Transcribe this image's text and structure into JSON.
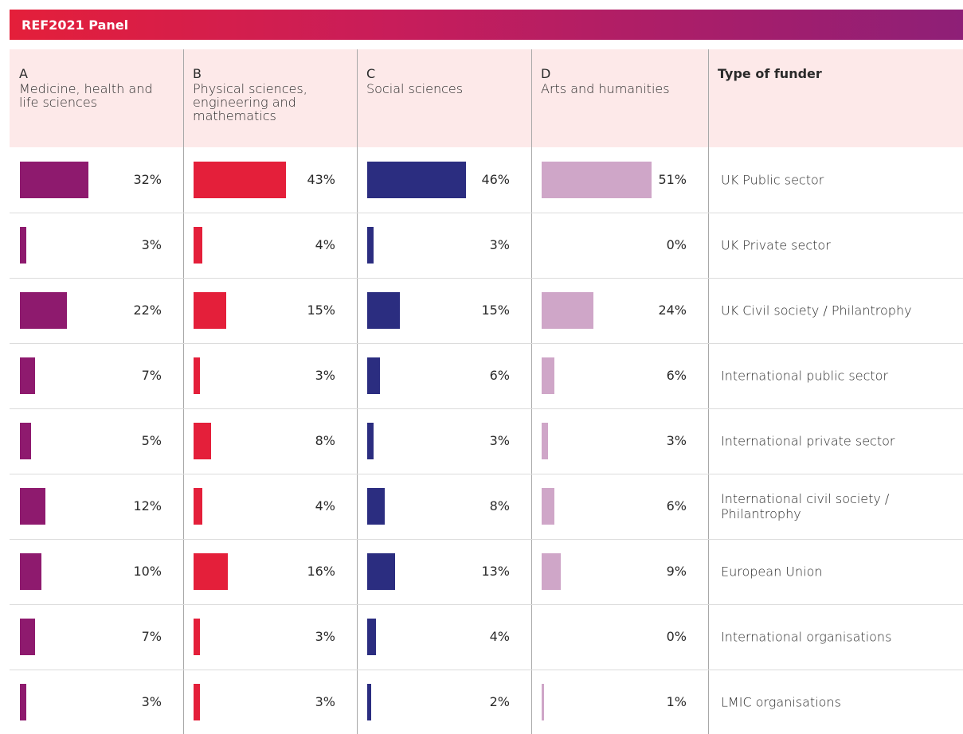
{
  "chart_data": {
    "type": "bar",
    "title": "REF2021 Panel",
    "category_header": "Type of funder",
    "categories": [
      "UK Public sector",
      "UK Private sector",
      "UK Civil society / Philantrophy",
      "International public sector",
      "International private sector",
      "International civil society / Philantrophy",
      "European Union",
      "International organisations",
      "LMIC organisations"
    ],
    "series": [
      {
        "letter": "A",
        "name": "Medicine, health and life sciences",
        "color": "#8e1a6e",
        "values": [
          32,
          3,
          22,
          7,
          5,
          12,
          10,
          7,
          3
        ],
        "value_labels": [
          "32%",
          "3%",
          "22%",
          "7%",
          "5%",
          "12%",
          "10%",
          "7%",
          "3%"
        ]
      },
      {
        "letter": "B",
        "name": "Physical sciences, engineering and mathematics",
        "color": "#e41f3a",
        "values": [
          43,
          4,
          15,
          3,
          8,
          4,
          16,
          3,
          3
        ],
        "value_labels": [
          "43%",
          "4%",
          "15%",
          "3%",
          "8%",
          "4%",
          "16%",
          "3%",
          "3%"
        ]
      },
      {
        "letter": "C",
        "name": "Social sciences",
        "color": "#2b2d80",
        "values": [
          46,
          3,
          15,
          6,
          3,
          8,
          13,
          4,
          2
        ],
        "value_labels": [
          "46%",
          "3%",
          "15%",
          "6%",
          "3%",
          "8%",
          "13%",
          "4%",
          "2%"
        ]
      },
      {
        "letter": "D",
        "name": "Arts and humanities",
        "color": "#cfa6c8",
        "values": [
          51,
          0,
          24,
          6,
          3,
          6,
          9,
          0,
          1
        ],
        "value_labels": [
          "51%",
          "0%",
          "24%",
          "6%",
          "3%",
          "6%",
          "9%",
          "0%",
          "1%"
        ]
      }
    ]
  }
}
